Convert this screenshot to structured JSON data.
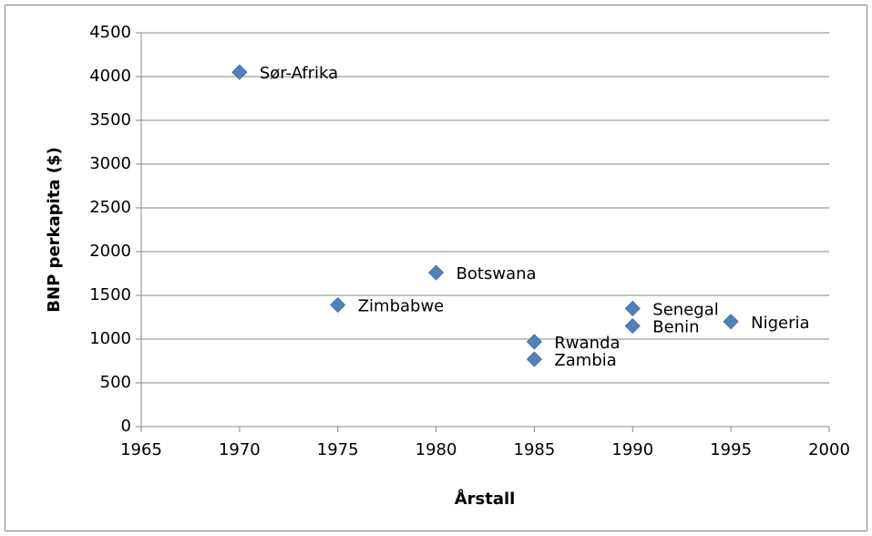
{
  "chart_data": {
    "type": "scatter",
    "x_label": "Årstall",
    "y_label": "BNP perkapita ($)",
    "x": [
      1970,
      1975,
      1980,
      1985,
      1985,
      1990,
      1990,
      1995
    ],
    "series": [
      {
        "color": "#4f81bd",
        "values": [
          4050,
          1390,
          1760,
          970,
          770,
          1350,
          1150,
          1200
        ]
      }
    ],
    "point_labels": [
      "Sør-Afrika",
      "Zimbabwe",
      "Botswana",
      "Rwanda",
      "Zambia",
      "Senegal",
      "Benin",
      "Nigeria"
    ],
    "xlim": [
      1965,
      2000
    ],
    "xticks": [
      1965,
      1970,
      1975,
      1980,
      1985,
      1990,
      1995,
      2000
    ],
    "ylim": [
      0,
      4500
    ],
    "yticks": [
      0,
      500,
      1000,
      1500,
      2000,
      2500,
      3000,
      3500,
      4000,
      4500
    ],
    "grid": true
  }
}
